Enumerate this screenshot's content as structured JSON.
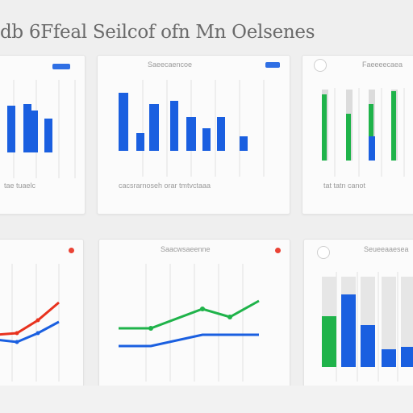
{
  "header": {
    "title": "db 6Ffeal Seilcof ofn Mn Oelsenes"
  },
  "colors": {
    "blue": "#1a5fe0",
    "green": "#1fb34a",
    "red": "#e8321e",
    "grid": "#e2e2e2",
    "bar_bg": "#dcdcdc"
  },
  "cards": {
    "top_left": {
      "label": "",
      "tick_labels": "tae tuaelc"
    },
    "top_middle": {
      "label": "Saeecaencoe",
      "tick_labels": "cacsrarnoseh orar tmtvctaaa"
    },
    "top_right": {
      "label": "Faeeeecaea",
      "tick_labels": "tat tatn canot"
    },
    "bottom_left": {
      "label": ""
    },
    "bottom_middle": {
      "label": "Saacwsaeenne"
    },
    "bottom_right": {
      "label": "Seueeaaesea"
    }
  },
  "chart_data": [
    {
      "type": "bar",
      "categories": [
        "1",
        "2",
        "3",
        "4"
      ],
      "series": [
        {
          "values": [
            58,
            60,
            52,
            42
          ]
        }
      ]
    },
    {
      "type": "bar",
      "categories": [
        "1",
        "2",
        "3",
        "4",
        "5",
        "6",
        "7",
        "8"
      ],
      "series": [
        {
          "values": [
            72,
            22,
            58,
            62,
            42,
            28,
            42,
            18
          ]
        }
      ]
    },
    {
      "type": "bar",
      "categories": [
        "1",
        "2",
        "3",
        "4"
      ],
      "series": [
        {
          "values": [
            82,
            58,
            70,
            86
          ]
        },
        {
          "values": [
            0,
            0,
            30,
            0
          ]
        }
      ]
    },
    {
      "type": "line",
      "series": [
        {
          "values": [
            12,
            14,
            30,
            52
          ]
        },
        {
          "values": [
            6,
            3,
            14,
            28
          ]
        }
      ]
    },
    {
      "type": "line",
      "series": [
        {
          "values": [
            30,
            30,
            54,
            44,
            64
          ]
        },
        {
          "values": [
            8,
            8,
            22,
            22,
            22
          ]
        }
      ]
    },
    {
      "type": "bar",
      "categories": [
        "1",
        "2",
        "3",
        "4",
        "5"
      ],
      "series": [
        {
          "values": [
            63,
            90,
            52,
            22,
            25
          ]
        }
      ]
    }
  ]
}
